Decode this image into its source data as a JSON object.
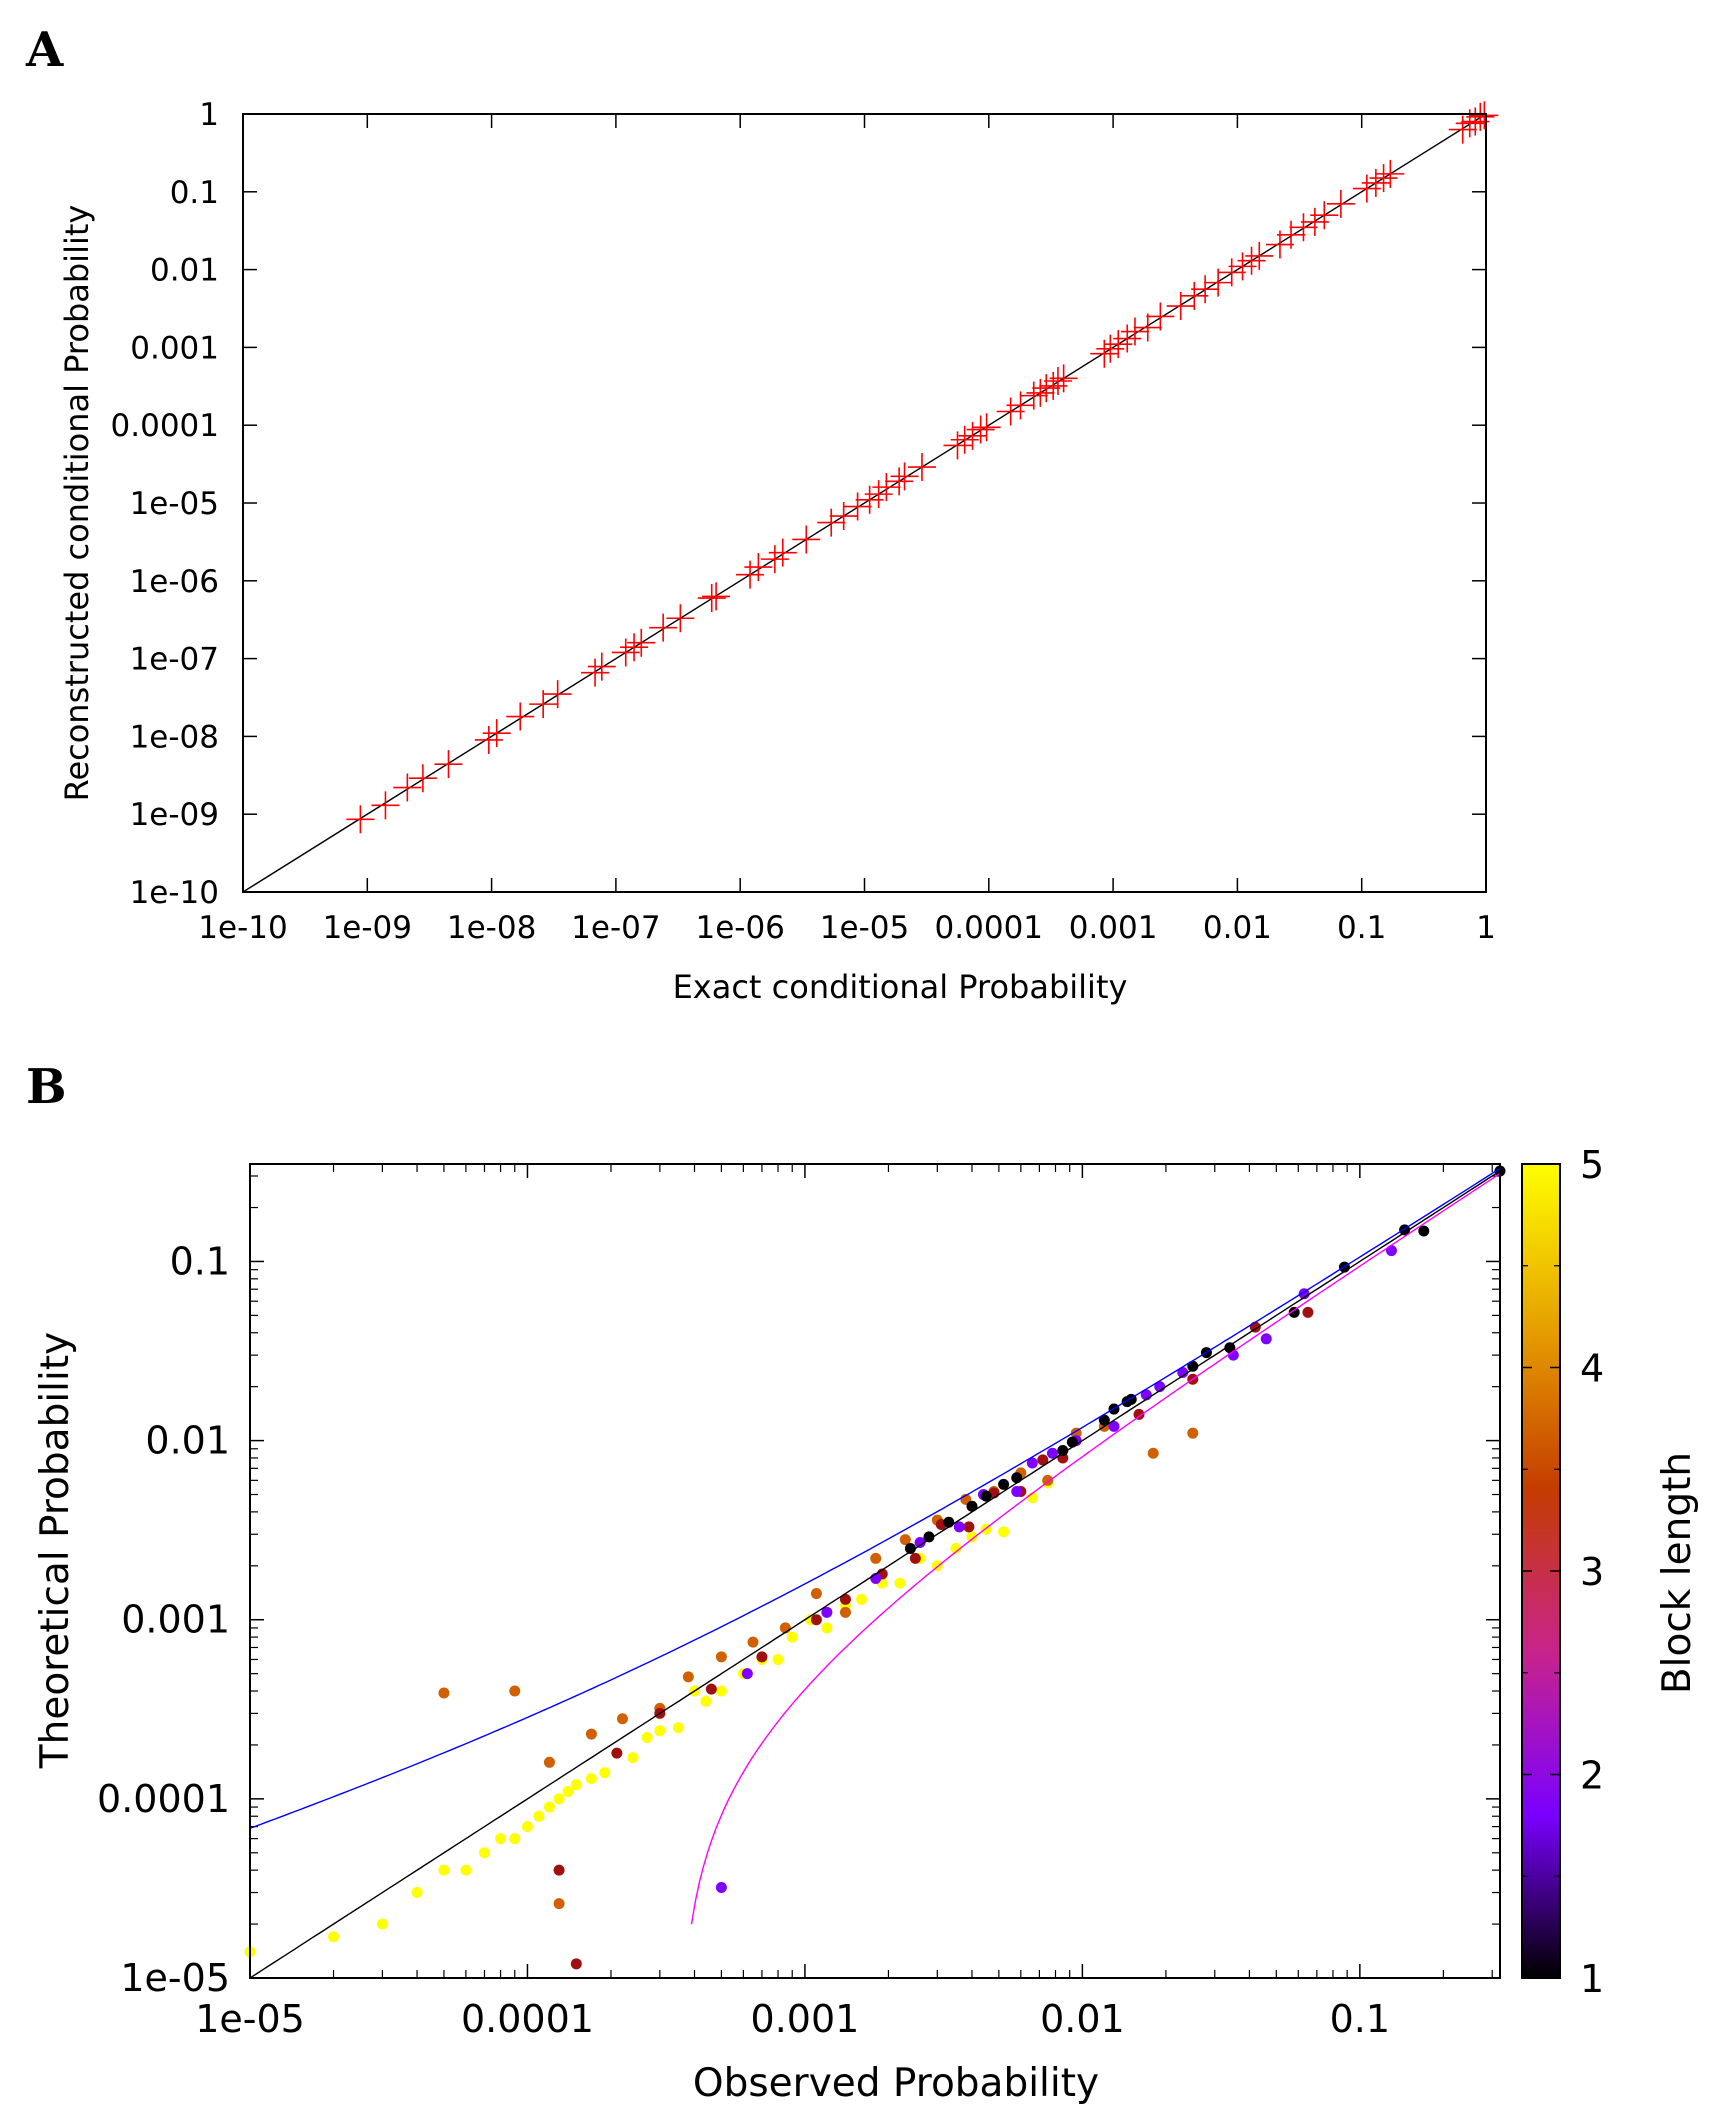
{
  "figure": {
    "panel_a_letter": "A",
    "panel_b_letter": "B"
  },
  "chart_data": [
    {
      "panel": "A",
      "type": "scatter",
      "xlabel": "Exact conditional Probability",
      "ylabel": "Reconstructed conditional Probability",
      "x_scale": "log",
      "y_scale": "log",
      "xlim": [
        1e-10,
        1
      ],
      "ylim": [
        1e-10,
        1
      ],
      "x_ticks": [
        "1e-10",
        "1e-09",
        "1e-08",
        "1e-07",
        "1e-06",
        "1e-05",
        "0.0001",
        "0.001",
        "0.01",
        "0.1",
        "1"
      ],
      "y_ticks": [
        "1e-10",
        "1e-09",
        "1e-08",
        "1e-07",
        "1e-06",
        "1e-05",
        "0.0001",
        "0.001",
        "0.01",
        "0.1",
        "1"
      ],
      "marker": "plus",
      "marker_color": "#ff0000",
      "reference_line": "y = x",
      "series": [
        {
          "x": [
            8.8e-10,
            1.4e-09,
            2.1e-09,
            2.8e-09,
            4.5e-09,
            9.5e-09,
            1.1e-08,
            1.7e-08,
            2.6e-08,
            3.4e-08,
            6.8e-08,
            7.7e-08,
            1.2e-07,
            1.4e-07,
            1.6e-07,
            2.4e-07,
            3.3e-07,
            5.9e-07,
            6.4e-07,
            1.2e-06,
            1.4e-06,
            1.9e-06,
            2.2e-06,
            3.4e-06,
            5.4e-06,
            6.8e-06,
            8.8e-06,
            1.1e-05,
            1.3e-05,
            1.5e-05,
            1.9e-05,
            2.1e-05,
            2.9e-05,
            5.6e-05,
            6.4e-05,
            7.4e-05,
            8.6e-05,
            9.6e-05,
            0.00015,
            0.00018,
            0.00023,
            0.00026,
            0.00029,
            0.00033,
            0.00036,
            0.0004,
            0.00085,
            0.00095,
            0.0011,
            0.0013,
            0.0015,
            0.0019,
            0.0024,
            0.0035,
            0.0045,
            0.0055,
            0.007,
            0.009,
            0.011,
            0.013,
            0.015,
            0.022,
            0.027,
            0.034,
            0.042,
            0.05,
            0.068,
            0.11,
            0.13,
            0.15,
            0.17,
            0.65,
            0.74,
            0.82,
            0.9,
            0.97
          ],
          "y": [
            8.6e-10,
            1.3e-09,
            2.2e-09,
            2.9e-09,
            4.4e-09,
            9e-09,
            1.1e-08,
            1.8e-08,
            2.6e-08,
            3.5e-08,
            6.6e-08,
            7.9e-08,
            1.2e-07,
            1.4e-07,
            1.6e-07,
            2.5e-07,
            3.3e-07,
            6e-07,
            6.3e-07,
            1.2e-06,
            1.5e-06,
            1.9e-06,
            2.3e-06,
            3.4e-06,
            5.6e-06,
            6.8e-06,
            9e-06,
            1.1e-05,
            1.3e-05,
            1.6e-05,
            1.9e-05,
            2.2e-05,
            2.9e-05,
            5.5e-05,
            6.5e-05,
            7.3e-05,
            8.8e-05,
            9.4e-05,
            0.00015,
            0.00018,
            0.00024,
            0.00026,
            0.0003,
            0.00032,
            0.00037,
            0.0004,
            0.00083,
            0.00096,
            0.0011,
            0.0013,
            0.0016,
            0.0018,
            0.0025,
            0.0034,
            0.0046,
            0.0056,
            0.0068,
            0.0092,
            0.011,
            0.013,
            0.015,
            0.021,
            0.028,
            0.035,
            0.041,
            0.05,
            0.07,
            0.11,
            0.13,
            0.15,
            0.17,
            0.63,
            0.76,
            0.8,
            0.92,
            0.96
          ]
        }
      ]
    },
    {
      "panel": "B",
      "type": "scatter",
      "xlabel": "Observed Probability",
      "ylabel": "Theoretical Probability",
      "x_scale": "log",
      "y_scale": "log",
      "xlim": [
        1e-05,
        0.32
      ],
      "ylim": [
        1e-05,
        0.35
      ],
      "x_ticks": [
        "1e-05",
        "0.0001",
        "0.001",
        "0.01",
        "0.1"
      ],
      "y_ticks": [
        "1e-05",
        "0.0001",
        "0.001",
        "0.01",
        "0.1"
      ],
      "colorbar": {
        "label": "Block length",
        "ticks": [
          "1",
          "2",
          "3",
          "4",
          "5"
        ],
        "range": [
          1,
          5
        ],
        "colors": [
          "#000000",
          "#7a00ff",
          "#c8238c",
          "#c43c00",
          "#e6a000",
          "#ffff00"
        ]
      },
      "curves": [
        {
          "color": "#000000",
          "role": "reference y = x"
        },
        {
          "color": "#0000ff",
          "role": "upper bound"
        },
        {
          "color": "#ff00ff",
          "role": "lower bound"
        }
      ],
      "series": [
        {
          "block_length": 1,
          "color": "#000000",
          "x": [
            0.32,
            0.17,
            0.145,
            0.088,
            0.058,
            0.034,
            0.028,
            0.025,
            0.015,
            0.0145,
            0.013,
            0.012,
            0.0092,
            0.0085,
            0.0058,
            0.0052,
            0.0045,
            0.004,
            0.0033,
            0.0028,
            0.0024
          ],
          "y": [
            0.32,
            0.148,
            0.15,
            0.093,
            0.052,
            0.033,
            0.031,
            0.026,
            0.017,
            0.0165,
            0.015,
            0.013,
            0.0098,
            0.0088,
            0.0062,
            0.0057,
            0.0049,
            0.0043,
            0.0035,
            0.0029,
            0.0025
          ]
        },
        {
          "block_length": 2,
          "color": "#8000ff",
          "x": [
            0.13,
            0.063,
            0.046,
            0.035,
            0.023,
            0.019,
            0.017,
            0.013,
            0.0095,
            0.0078,
            0.0066,
            0.0058,
            0.0044,
            0.0036,
            0.0026,
            0.0018,
            0.0012,
            0.00062,
            0.0005
          ],
          "y": [
            0.115,
            0.066,
            0.037,
            0.03,
            0.024,
            0.02,
            0.018,
            0.012,
            0.01,
            0.0085,
            0.0075,
            0.0052,
            0.005,
            0.0033,
            0.0027,
            0.0017,
            0.0011,
            0.0005,
            3.2e-05
          ]
        },
        {
          "block_length": 3,
          "color": "#a01010",
          "x": [
            0.065,
            0.042,
            0.025,
            0.016,
            0.0085,
            0.0072,
            0.006,
            0.0048,
            0.0039,
            0.0031,
            0.0025,
            0.0019,
            0.0014,
            0.0011,
            0.0007,
            0.00046,
            0.0003,
            0.00021,
            0.00015,
            0.00013
          ],
          "y": [
            0.052,
            0.043,
            0.022,
            0.014,
            0.008,
            0.0078,
            0.0052,
            0.0051,
            0.0033,
            0.0034,
            0.0022,
            0.0018,
            0.0013,
            0.001,
            0.00062,
            0.00041,
            0.0003,
            0.00018,
            1.2e-05,
            4e-05
          ]
        },
        {
          "block_length": 4,
          "color": "#d06000",
          "x": [
            0.025,
            0.018,
            0.012,
            0.0095,
            0.0075,
            0.006,
            0.0048,
            0.0038,
            0.003,
            0.0023,
            0.0018,
            0.0014,
            0.0011,
            0.00085,
            0.00065,
            0.0005,
            0.00038,
            0.0003,
            0.00022,
            0.00017,
            0.00012,
            9e-05,
            5e-05,
            0.00013
          ],
          "y": [
            0.011,
            0.0085,
            0.012,
            0.011,
            0.006,
            0.0066,
            0.0052,
            0.0047,
            0.0036,
            0.0028,
            0.0022,
            0.0011,
            0.0014,
            0.0009,
            0.00075,
            0.00062,
            0.00048,
            0.00032,
            0.00028,
            0.00023,
            0.00016,
            0.0004,
            0.00039,
            2.6e-05
          ]
        },
        {
          "block_length": 5,
          "color": "#ffff00",
          "x": [
            0.0075,
            0.0066,
            0.0052,
            0.0045,
            0.004,
            0.0035,
            0.003,
            0.0026,
            0.0022,
            0.0019,
            0.0016,
            0.0014,
            0.0012,
            0.00105,
            0.0009,
            0.0008,
            0.0007,
            0.0006,
            0.0005,
            0.00044,
            0.0004,
            0.00035,
            0.0003,
            0.00027,
            0.00024,
            0.00021,
            0.00019,
            0.00017,
            0.00015,
            0.00014,
            0.00013,
            0.00012,
            0.00011,
            0.0001,
            9e-05,
            8e-05,
            7e-05,
            6e-05,
            5e-05,
            4e-05,
            3e-05,
            2e-05,
            1e-05
          ],
          "y": [
            0.0058,
            0.0048,
            0.0031,
            0.0032,
            0.0029,
            0.0025,
            0.002,
            0.0022,
            0.0016,
            0.0016,
            0.0013,
            0.0012,
            0.0009,
            0.001,
            0.0008,
            0.0006,
            0.0006,
            0.0005,
            0.0004,
            0.00035,
            0.0004,
            0.00025,
            0.00024,
            0.00022,
            0.00017,
            0.00018,
            0.00014,
            0.00013,
            0.00012,
            0.00011,
            0.0001,
            9e-05,
            8e-05,
            7e-05,
            6e-05,
            6e-05,
            5e-05,
            4e-05,
            4e-05,
            3e-05,
            2e-05,
            1.7e-05,
            1.4e-05
          ]
        }
      ]
    }
  ]
}
